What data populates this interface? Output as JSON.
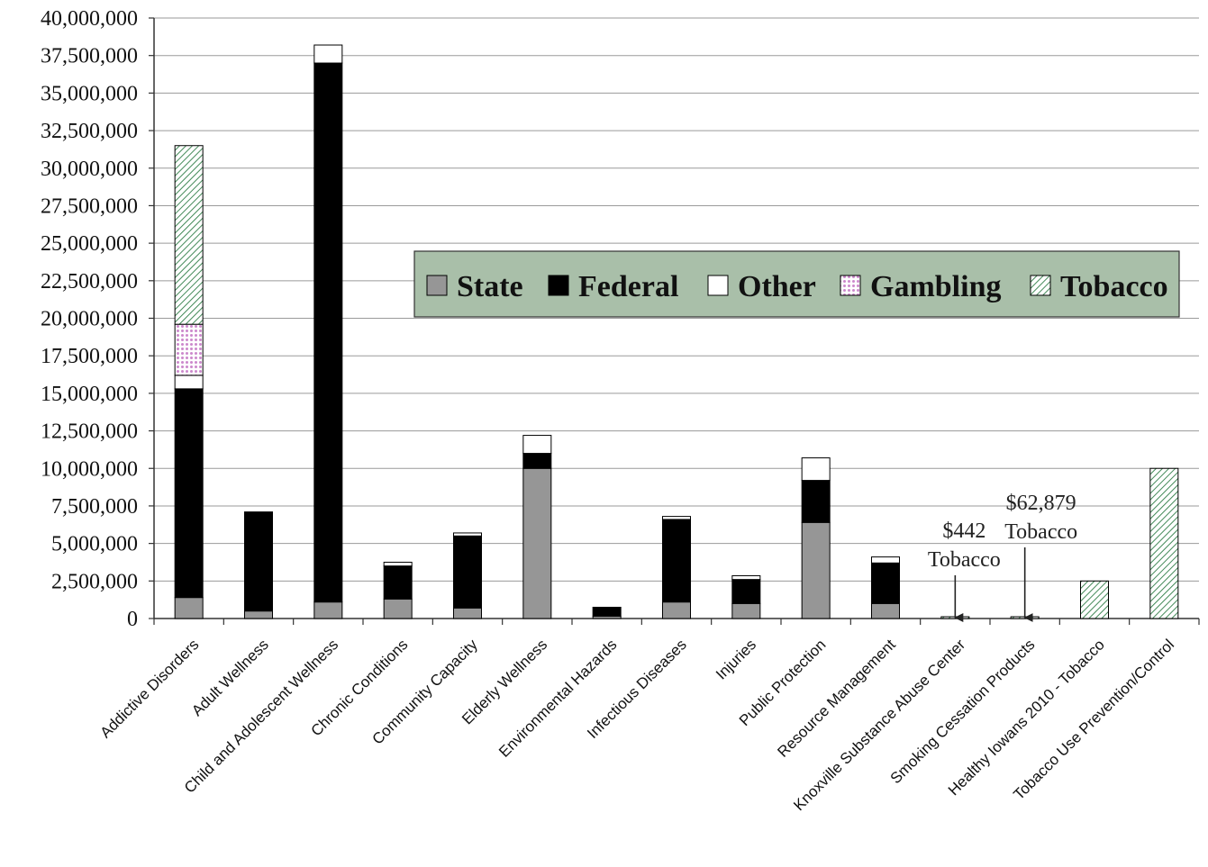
{
  "chart_data": {
    "type": "bar",
    "stacked": true,
    "title": "",
    "xlabel": "",
    "ylabel": "",
    "ylim": [
      0,
      40000000
    ],
    "yticks": [
      0,
      2500000,
      5000000,
      7500000,
      10000000,
      12500000,
      15000000,
      17500000,
      20000000,
      22500000,
      25000000,
      27500000,
      30000000,
      32500000,
      35000000,
      37500000,
      40000000
    ],
    "ytick_labels": [
      "0",
      "2,500,000",
      "5,000,000",
      "7,500,000",
      "10,000,000",
      "12,500,000",
      "15,000,000",
      "17,500,000",
      "20,000,000",
      "22,500,000",
      "25,000,000",
      "27,500,000",
      "30,000,000",
      "32,500,000",
      "35,000,000",
      "37,500,000",
      "40,000,000"
    ],
    "grid": true,
    "legend_placement": "center-right",
    "categories": [
      "Addictive Disorders",
      "Adult Wellness",
      "Child and Adolescent Wellness",
      "Chronic Conditions",
      "Community Capacity",
      "Elderly Wellness",
      "Environmental Hazards",
      "Infectious Diseases",
      "Injuries",
      "Public Protection",
      "Resource Management",
      "Knoxville Substance Abuse Center",
      "Smoking Cessation Products",
      "Healthy Iowans 2010 - Tobacco",
      "Tobacco Use Prevention/Control"
    ],
    "series": [
      {
        "name": "State",
        "color": "#969696",
        "pattern": "solid",
        "values": [
          1400000,
          500000,
          1100000,
          1300000,
          700000,
          10000000,
          150000,
          1100000,
          1000000,
          6400000,
          1000000,
          0,
          0,
          0,
          0
        ]
      },
      {
        "name": "Federal",
        "color": "#000000",
        "pattern": "solid",
        "values": [
          13900000,
          6600000,
          35900000,
          2200000,
          4800000,
          1000000,
          600000,
          5500000,
          1600000,
          2800000,
          2700000,
          0,
          0,
          0,
          0
        ]
      },
      {
        "name": "Other",
        "color": "#ffffff",
        "pattern": "solid",
        "values": [
          900000,
          0,
          1200000,
          250000,
          200000,
          1200000,
          0,
          200000,
          250000,
          1500000,
          400000,
          0,
          0,
          0,
          0
        ]
      },
      {
        "name": "Gambling",
        "color": "#cc88cc",
        "pattern": "dots",
        "values": [
          3400000,
          0,
          0,
          0,
          0,
          0,
          0,
          0,
          0,
          0,
          0,
          0,
          0,
          0,
          0
        ]
      },
      {
        "name": "Tobacco",
        "color": "#2e7d46",
        "pattern": "diagonal",
        "values": [
          11900000,
          0,
          0,
          0,
          0,
          0,
          0,
          0,
          0,
          0,
          0,
          442,
          62879,
          2500000,
          10000000
        ]
      }
    ],
    "annotations": [
      {
        "category_index": 11,
        "line1": "$442",
        "line2": "Tobacco"
      },
      {
        "category_index": 12,
        "line1": "$62,879",
        "line2": "Tobacco"
      }
    ]
  }
}
